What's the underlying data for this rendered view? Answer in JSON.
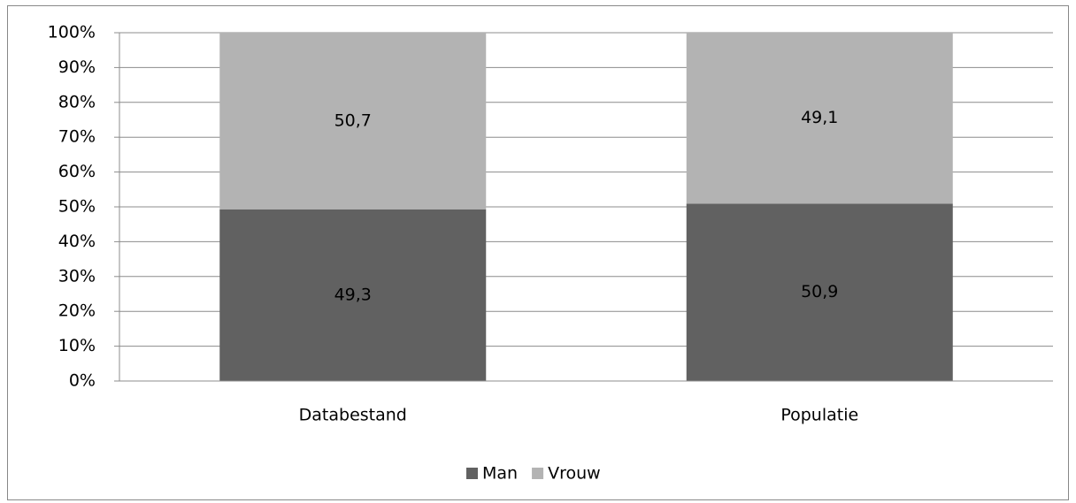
{
  "chart_data": {
    "type": "stacked_bar",
    "categories": [
      "Databestand",
      "Populatie"
    ],
    "series": [
      {
        "name": "Man",
        "color": "#616161",
        "values": [
          49.3,
          50.9
        ],
        "value_labels": [
          "49,3",
          "50,9"
        ]
      },
      {
        "name": "Vrouw",
        "color": "#b3b3b3",
        "values": [
          50.7,
          49.1
        ],
        "value_labels": [
          "50,7",
          "49,1"
        ]
      }
    ],
    "ylim": [
      0,
      100
    ],
    "yticks": [
      {
        "value": 0,
        "label": "0%"
      },
      {
        "value": 10,
        "label": "10%"
      },
      {
        "value": 20,
        "label": "20%"
      },
      {
        "value": 30,
        "label": "30%"
      },
      {
        "value": 40,
        "label": "40%"
      },
      {
        "value": 50,
        "label": "50%"
      },
      {
        "value": 60,
        "label": "60%"
      },
      {
        "value": 70,
        "label": "70%"
      },
      {
        "value": 80,
        "label": "80%"
      },
      {
        "value": 90,
        "label": "90%"
      },
      {
        "value": 100,
        "label": "100%"
      }
    ],
    "grid": true,
    "legend": "bottom"
  }
}
